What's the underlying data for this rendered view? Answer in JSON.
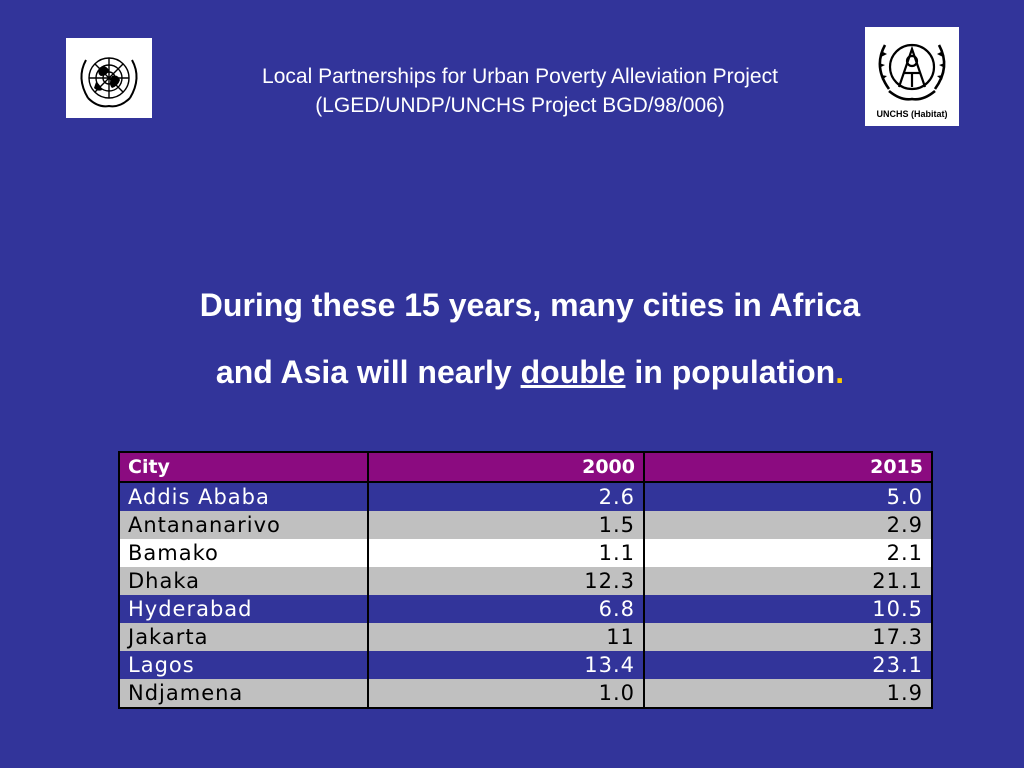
{
  "header": {
    "line1": "Local Partnerships for Urban Poverty Alleviation Project",
    "line2": "(LGED/UNDP/UNCHS Project BGD/98/006)",
    "logo_left_icon": "un-emblem-icon",
    "logo_right_icon": "unchs-habitat-emblem-icon",
    "logo_right_label": "UNCHS (Habitat)"
  },
  "headline": {
    "line1": "During these 15 years, many cities in Africa",
    "line2_pre": "and Asia will nearly ",
    "line2_emph": "double",
    "line2_post": " in population",
    "line2_end": "."
  },
  "table": {
    "headers": [
      "City",
      "2000",
      "2015"
    ],
    "rows": [
      {
        "city": "Addis  Ababa",
        "y2000": "2.6",
        "y2015": "5.0",
        "style": "blue"
      },
      {
        "city": "Antananarivo",
        "y2000": "1.5",
        "y2015": "2.9",
        "style": "gray"
      },
      {
        "city": "Bamako",
        "y2000": "1.1",
        "y2015": "2.1",
        "style": "white"
      },
      {
        "city": "Dhaka",
        "y2000": "12.3",
        "y2015": "21.1",
        "style": "gray"
      },
      {
        "city": "Hyderabad",
        "y2000": "6.8",
        "y2015": "10.5",
        "style": "blue"
      },
      {
        "city": "Jakarta",
        "y2000": "11",
        "y2015": "17.3",
        "style": "gray"
      },
      {
        "city": "Lagos",
        "y2000": "13.4",
        "y2015": "23.1",
        "style": "blue"
      },
      {
        "city": "Ndjamena",
        "y2000": "1.0",
        "y2015": "1.9",
        "style": "gray"
      }
    ]
  },
  "colors": {
    "background": "#32349a",
    "header_row": "#8b0b80",
    "row_gray": "#c0c0c0",
    "row_white": "#ffffff",
    "period_accent": "#ffcc00"
  }
}
